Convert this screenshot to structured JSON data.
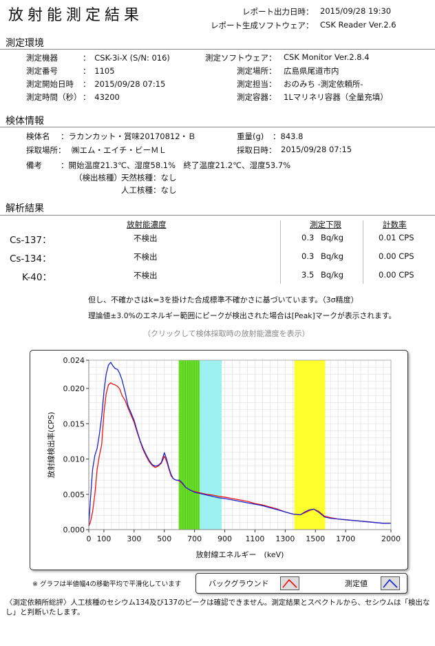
{
  "header": {
    "title": "放射能測定結果",
    "report_time_label": "レポート出力日時：",
    "report_time": "2015/09/28 19:30",
    "software_label": "レポート生成ソフトウェア：",
    "software": "CSK Reader Ver.2.6"
  },
  "environment": {
    "heading": "測定環境",
    "device_label": "測定機器",
    "device": "：　CSK-3i-X (S/N: 016)",
    "number_label": "測定番号",
    "number": "：　1105",
    "start_label": "測定開始日時",
    "start": "：　2015/09/28 07:15",
    "duration_label": "測定時間（秒）",
    "duration": "：　43200",
    "msoft_label": "測定ソフトウェア：",
    "msoft": "CSK Monitor Ver.2.8.4",
    "place_label": "測定場所：",
    "place": "広島県尾道市内",
    "staff_label": "測定担当：",
    "staff": "おのみち -測定依頼所-",
    "container_label": "測定容器：",
    "container": "1Lマリネリ容器（全量充填）"
  },
  "sample": {
    "heading": "検体情報",
    "name_label": "検体名",
    "name": "：ラカンカット・賞味20170812・Ｂ",
    "place_label": "採取場所：",
    "place": "㈱エム・エイチ・ビーＭＬ",
    "weight_label": "重量(g)",
    "weight": "：843.8",
    "date_label": "採取日時：",
    "date": "2015/09/28 07:15",
    "remarks_label": "備考",
    "remarks": "：開始温度21.3℃、湿度58.1%　終了温度21.2℃、湿度53.7%",
    "detected_label": "（検出核種）",
    "natural": "天然核種：なし",
    "artificial": "人工核種：なし"
  },
  "analysis": {
    "heading": "解析結果",
    "col_conc": "放射能濃度",
    "col_limit": "測定下限",
    "col_cps": "計数率",
    "rows": [
      {
        "nuclide": "Cs-137：",
        "result": "不検出",
        "limit": "0.3",
        "unit": "Bq/kg",
        "cps": "0.01 CPS"
      },
      {
        "nuclide": "Cs-134：",
        "result": "不検出",
        "limit": "0.3",
        "unit": "Bq/kg",
        "cps": "0.00 CPS"
      },
      {
        "nuclide": "K-40：",
        "result": "不検出",
        "limit": "3.5",
        "unit": "Bq/kg",
        "cps": "0.00 CPS"
      }
    ],
    "note1": "但し、不確かさはk=3を掛けた合成標準不確かさに基づいています。（3σ精度）",
    "note2": "理論値±3.0%のエネルギー範囲にピークが検出された場合は[Peak]マークが表示されます。",
    "link": "（クリックして検体採取時の放射能濃度を表示）"
  },
  "footer": {
    "smoothing": "※ グラフは半値幅4の移動平均で平滑化しています",
    "legend_bg": "バックグラウンド",
    "legend_meas": "測定値",
    "comment": "〈測定依頼所総評〉人工核種のセシウム134及び137のピークは確認できません。測定結果とスペクトルから、セシウムは「検出なし」と判断いたします。"
  },
  "chart_data": {
    "type": "line",
    "xlabel": "放射線エネルギー　(keV)",
    "ylabel": "放射線検出率(CPS)",
    "xlim": [
      0,
      2000
    ],
    "ylim": [
      0,
      0.024
    ],
    "xticks": [
      0,
      100,
      300,
      500,
      700,
      900,
      1100,
      1300,
      1500,
      1700,
      2000
    ],
    "yticks": [
      0.0,
      0.005,
      0.01,
      0.015,
      0.02,
      0.024
    ],
    "ytick_labels": [
      "0.000",
      "0.005",
      "0.010",
      "0.015",
      "0.020",
      "0.024"
    ],
    "grid": true,
    "bands": [
      {
        "from": 595,
        "to": 735,
        "color": "#66dd22"
      },
      {
        "from": 735,
        "to": 880,
        "color": "#99f0f0"
      },
      {
        "from": 1360,
        "to": 1565,
        "color": "#ffff22"
      }
    ],
    "series": [
      {
        "name": "測定値",
        "color": "#1a22cc",
        "x": [
          0,
          10,
          25,
          40,
          55,
          70,
          85,
          100,
          115,
          130,
          145,
          160,
          175,
          190,
          205,
          220,
          240,
          260,
          280,
          300,
          320,
          340,
          360,
          380,
          400,
          420,
          440,
          460,
          480,
          500,
          515,
          530,
          545,
          560,
          580,
          600,
          620,
          640,
          670,
          700,
          740,
          780,
          820,
          860,
          900,
          950,
          1000,
          1050,
          1100,
          1150,
          1200,
          1250,
          1300,
          1350,
          1400,
          1430,
          1460,
          1490,
          1520,
          1560,
          1600,
          1650,
          1700,
          1750,
          1800,
          1850,
          1900,
          1950,
          2000
        ],
        "y": [
          0.0005,
          0.004,
          0.0085,
          0.0105,
          0.0115,
          0.0135,
          0.016,
          0.0195,
          0.022,
          0.0233,
          0.0237,
          0.0232,
          0.0228,
          0.0227,
          0.0221,
          0.0212,
          0.0195,
          0.0175,
          0.0165,
          0.0155,
          0.014,
          0.0126,
          0.0115,
          0.0106,
          0.0098,
          0.0092,
          0.009,
          0.0091,
          0.0095,
          0.0109,
          0.01,
          0.0088,
          0.0078,
          0.0072,
          0.007,
          0.007,
          0.0066,
          0.006,
          0.0056,
          0.0053,
          0.0051,
          0.0049,
          0.0047,
          0.0045,
          0.0044,
          0.0042,
          0.004,
          0.0038,
          0.0036,
          0.0034,
          0.0031,
          0.0028,
          0.0025,
          0.0022,
          0.0021,
          0.0025,
          0.0028,
          0.0029,
          0.0025,
          0.0018,
          0.0016,
          0.0015,
          0.0014,
          0.0013,
          0.0012,
          0.0011,
          0.001,
          0.0009,
          0.0009
        ]
      },
      {
        "name": "バックグラウンド",
        "color": "#ee1111",
        "x": [
          0,
          10,
          25,
          40,
          55,
          70,
          85,
          100,
          115,
          130,
          145,
          160,
          175,
          190,
          205,
          220,
          240,
          260,
          280,
          300,
          320,
          340,
          360,
          380,
          400,
          420,
          440,
          460,
          480,
          500,
          515,
          530,
          545,
          560,
          580,
          600,
          620,
          640,
          670,
          700,
          740,
          780,
          820,
          860,
          900,
          950,
          1000,
          1050,
          1100,
          1150,
          1200,
          1250,
          1300,
          1350,
          1400,
          1430,
          1460,
          1490,
          1520,
          1560,
          1600,
          1650,
          1700,
          1750,
          1800,
          1850,
          1900,
          1950,
          2000
        ],
        "y": [
          0.0005,
          0.001,
          0.0025,
          0.005,
          0.0085,
          0.0105,
          0.012,
          0.0165,
          0.0192,
          0.0205,
          0.0208,
          0.0206,
          0.0205,
          0.0203,
          0.0199,
          0.019,
          0.0183,
          0.0172,
          0.0162,
          0.0152,
          0.0138,
          0.0125,
          0.0113,
          0.0104,
          0.0096,
          0.0091,
          0.0088,
          0.009,
          0.0094,
          0.0104,
          0.0097,
          0.0086,
          0.0076,
          0.0072,
          0.007,
          0.0069,
          0.0065,
          0.006,
          0.0056,
          0.0054,
          0.0052,
          0.005,
          0.0049,
          0.0047,
          0.0046,
          0.0044,
          0.0042,
          0.004,
          0.0037,
          0.0035,
          0.0032,
          0.0029,
          0.0025,
          0.0022,
          0.0021,
          0.0024,
          0.0027,
          0.0029,
          0.0026,
          0.0019,
          0.0017,
          0.0015,
          0.0014,
          0.0013,
          0.0012,
          0.0011,
          0.001,
          0.0009,
          0.0009
        ]
      }
    ]
  }
}
